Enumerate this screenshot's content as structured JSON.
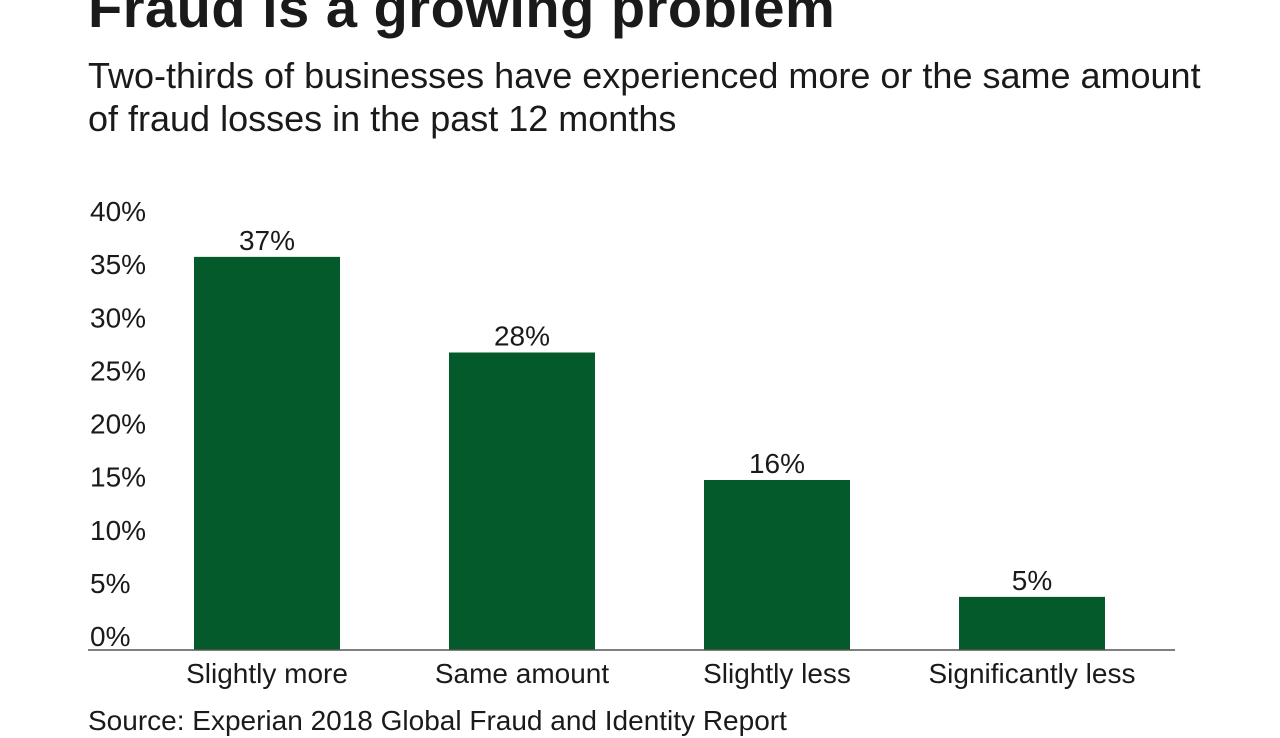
{
  "title": "Fraud is a growing problem",
  "subtitle": "Two-thirds of businesses have experienced more or the same amount of fraud losses in the past 12 months",
  "source": "Source: Experian 2018 Global Fraud and Identity Report",
  "chart_data": {
    "type": "bar",
    "categories": [
      "Slightly more",
      "Same amount",
      "Slightly less",
      "Significantly less"
    ],
    "values": [
      37,
      28,
      16,
      5
    ],
    "data_labels": [
      "37%",
      "28%",
      "16%",
      "5%"
    ],
    "yticks": [
      0,
      5,
      10,
      15,
      20,
      25,
      30,
      35,
      40
    ],
    "ytick_labels": [
      "0%",
      "5%",
      "10%",
      "15%",
      "20%",
      "25%",
      "30%",
      "35%",
      "40%"
    ],
    "ylim": [
      0,
      40
    ],
    "grid": false,
    "bar_color": "#045a2a"
  }
}
